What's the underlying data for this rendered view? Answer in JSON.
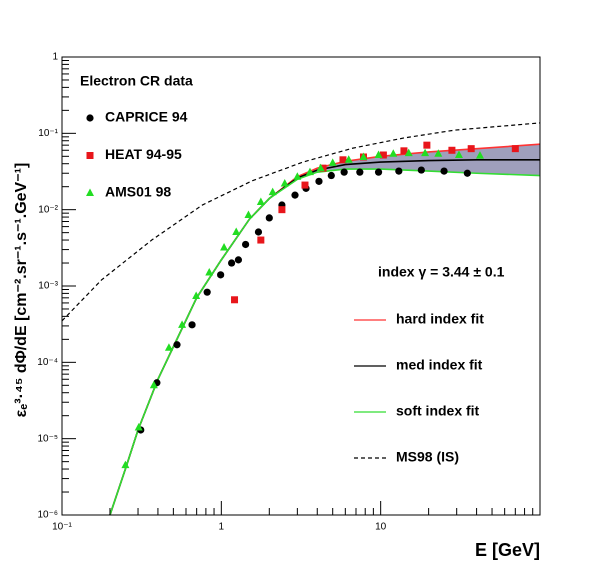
{
  "chart_data": {
    "type": "scatter",
    "xlabel": "E [GeV]",
    "ylabel": "εₑ³·⁴⁵ dΦ/dE [cm⁻².sr⁻¹.s⁻¹.GeV⁻¹]",
    "xscale": "log",
    "yscale": "log",
    "xlim": [
      0.1,
      100
    ],
    "ylim": [
      1e-06,
      1
    ],
    "xticks": [
      {
        "value": 0.1,
        "label": "10⁻¹"
      },
      1,
      10
    ],
    "yticks": [
      {
        "value": 1e-06,
        "label": "10⁻⁶"
      },
      {
        "value": 1e-05,
        "label": "10⁻⁵"
      },
      {
        "value": 0.0001,
        "label": "10⁻⁴"
      },
      {
        "value": 0.001,
        "label": "10⁻³"
      },
      {
        "value": 0.01,
        "label": "10⁻²"
      },
      {
        "value": 0.1,
        "label": "10⁻¹"
      },
      1
    ],
    "legend_title": "Electron CR data",
    "annotation": "index γ = 3.44 ± 0.1",
    "series": [
      {
        "name": "CAPRICE 94",
        "color": "#000000",
        "style": "circle",
        "x": [
          0.312,
          0.394,
          0.527,
          0.655,
          0.815,
          0.99,
          1.16,
          1.28,
          1.42,
          1.71,
          2.0,
          2.4,
          2.9,
          3.4,
          4.1,
          4.9,
          5.9,
          7.4,
          9.7,
          13,
          18,
          25,
          35
        ],
        "values": [
          1.3e-05,
          5.4e-05,
          0.00017,
          0.00031,
          0.00083,
          0.0014,
          0.002,
          0.0022,
          0.0035,
          0.0051,
          0.0078,
          0.0115,
          0.0155,
          0.019,
          0.0235,
          0.028,
          0.031,
          0.031,
          0.031,
          0.032,
          0.033,
          0.032,
          0.03
        ]
      },
      {
        "name": "HEAT 94-95",
        "color": "#e8161b",
        "style": "square",
        "x": [
          1.21,
          1.77,
          2.4,
          3.35,
          4.35,
          5.8,
          7.8,
          10.4,
          14,
          19.5,
          28,
          37,
          70
        ],
        "values": [
          0.00066,
          0.004,
          0.01,
          0.021,
          0.035,
          0.045,
          0.049,
          0.052,
          0.059,
          0.07,
          0.06,
          0.063,
          0.063
        ]
      },
      {
        "name": "AMS01 98",
        "color": "#22dd22",
        "style": "triangle",
        "x": [
          0.25,
          0.303,
          0.377,
          0.469,
          0.567,
          0.695,
          0.84,
          1.04,
          1.24,
          1.48,
          1.77,
          2.1,
          2.5,
          3.0,
          3.6,
          4.2,
          5.0,
          6.3,
          7.8,
          9.7,
          12,
          15,
          19,
          23,
          31,
          42
        ],
        "values": [
          4.5e-06,
          1.4e-05,
          5e-05,
          0.000155,
          0.00031,
          0.00074,
          0.0015,
          0.0032,
          0.0051,
          0.0085,
          0.0126,
          0.017,
          0.022,
          0.027,
          0.031,
          0.035,
          0.041,
          0.045,
          0.049,
          0.052,
          0.054,
          0.055,
          0.055,
          0.054,
          0.052,
          0.051
        ]
      },
      {
        "name": "hard index fit",
        "color": "#ff3333",
        "style": "solid",
        "x": [
          0.2,
          0.25,
          0.3,
          0.4,
          0.5,
          0.7,
          1,
          1.5,
          2,
          3,
          4,
          6,
          10,
          20,
          40,
          100
        ],
        "values": [
          1e-06,
          4e-06,
          1.3e-05,
          6e-05,
          0.00016,
          0.0007,
          0.0022,
          0.0075,
          0.014,
          0.027,
          0.035,
          0.043,
          0.05,
          0.057,
          0.063,
          0.072
        ]
      },
      {
        "name": "med index fit",
        "color": "#000000",
        "style": "solid",
        "x": [
          0.2,
          0.25,
          0.3,
          0.4,
          0.5,
          0.7,
          1,
          1.5,
          2,
          3,
          4,
          6,
          10,
          20,
          40,
          100
        ],
        "values": [
          1e-06,
          4e-06,
          1.3e-05,
          6e-05,
          0.00016,
          0.0007,
          0.0022,
          0.0075,
          0.014,
          0.026,
          0.033,
          0.039,
          0.042,
          0.044,
          0.045,
          0.045
        ]
      },
      {
        "name": "soft index fit",
        "color": "#33dd33",
        "style": "solid",
        "x": [
          0.2,
          0.25,
          0.3,
          0.4,
          0.5,
          0.7,
          1,
          1.5,
          2,
          3,
          4,
          6,
          10,
          20,
          40,
          100
        ],
        "values": [
          1e-06,
          4e-06,
          1.3e-05,
          6e-05,
          0.00016,
          0.0007,
          0.0022,
          0.0075,
          0.014,
          0.025,
          0.031,
          0.034,
          0.034,
          0.032,
          0.03,
          0.028
        ]
      },
      {
        "name": "MS98 (IS)",
        "color": "#000000",
        "style": "dashed",
        "x": [
          0.1,
          0.177,
          0.366,
          0.76,
          1.57,
          3.25,
          6.7,
          14,
          29,
          100
        ],
        "values": [
          0.00035,
          0.0012,
          0.004,
          0.0115,
          0.024,
          0.042,
          0.064,
          0.087,
          0.11,
          0.137
        ]
      }
    ],
    "band": {
      "color": "#7f7fa6",
      "between": [
        3,
        5
      ]
    }
  }
}
